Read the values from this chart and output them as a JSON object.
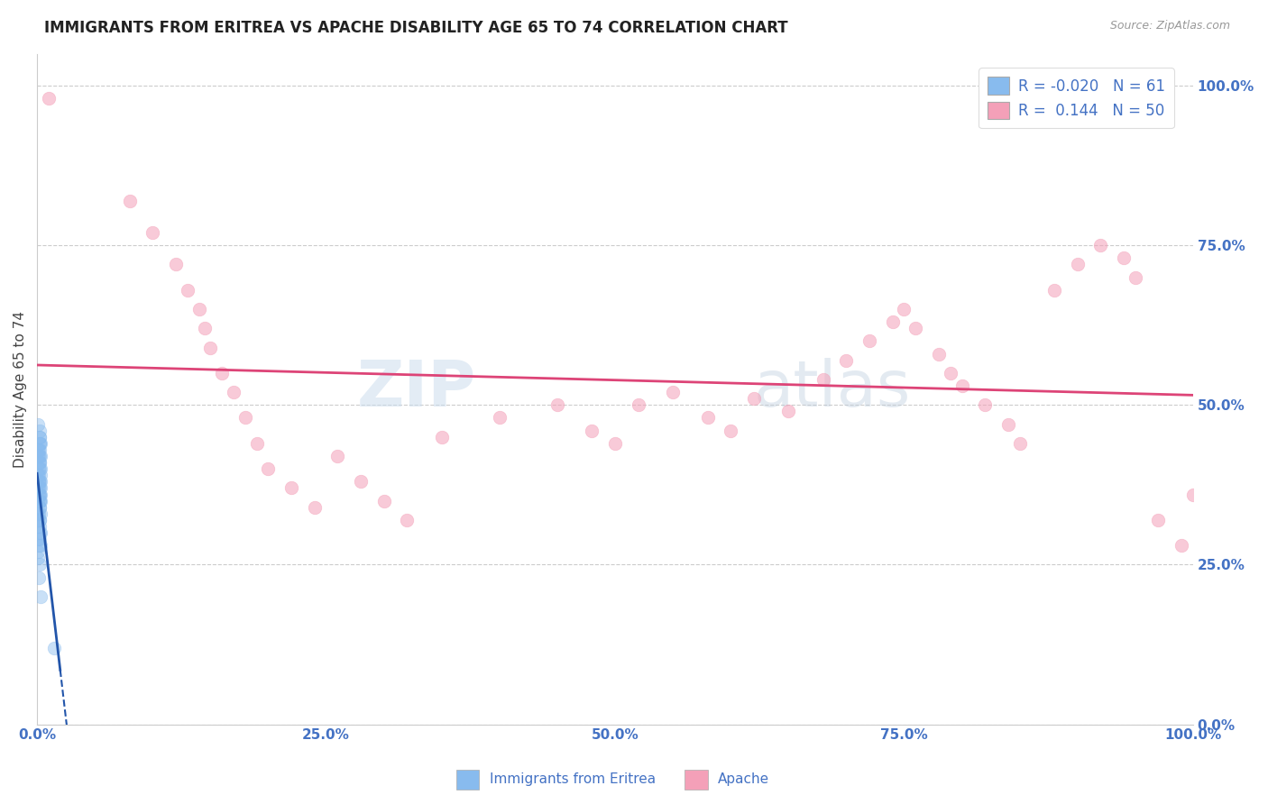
{
  "title": "IMMIGRANTS FROM ERITREA VS APACHE DISABILITY AGE 65 TO 74 CORRELATION CHART",
  "source_text": "Source: ZipAtlas.com",
  "xlabel_blue": "Immigrants from Eritrea",
  "xlabel_pink": "Apache",
  "ylabel": "Disability Age 65 to 74",
  "r_blue": -0.02,
  "n_blue": 61,
  "r_pink": 0.144,
  "n_pink": 50,
  "watermark_zip": "ZIP",
  "watermark_atlas": "atlas",
  "blue_color": "#88bbee",
  "pink_color": "#f4a0b8",
  "blue_line_color": "#2255aa",
  "pink_line_color": "#dd4477",
  "blue_scatter": [
    [
      0.1,
      42.0
    ],
    [
      0.15,
      38.0
    ],
    [
      0.2,
      44.0
    ],
    [
      0.25,
      36.0
    ],
    [
      0.3,
      40.0
    ],
    [
      0.1,
      35.0
    ],
    [
      0.2,
      41.0
    ],
    [
      0.15,
      33.0
    ],
    [
      0.25,
      45.0
    ],
    [
      0.3,
      38.0
    ],
    [
      0.1,
      37.0
    ],
    [
      0.2,
      43.0
    ],
    [
      0.15,
      39.0
    ],
    [
      0.25,
      34.0
    ],
    [
      0.3,
      42.0
    ],
    [
      0.1,
      31.0
    ],
    [
      0.2,
      36.0
    ],
    [
      0.15,
      40.0
    ],
    [
      0.25,
      37.0
    ],
    [
      0.3,
      44.0
    ],
    [
      0.1,
      33.0
    ],
    [
      0.2,
      38.0
    ],
    [
      0.15,
      42.0
    ],
    [
      0.25,
      35.0
    ],
    [
      0.3,
      39.0
    ],
    [
      0.1,
      29.0
    ],
    [
      0.2,
      34.0
    ],
    [
      0.15,
      41.0
    ],
    [
      0.25,
      32.0
    ],
    [
      0.3,
      36.0
    ],
    [
      0.1,
      43.0
    ],
    [
      0.2,
      30.0
    ],
    [
      0.15,
      37.0
    ],
    [
      0.25,
      46.0
    ],
    [
      0.3,
      33.0
    ],
    [
      0.1,
      27.0
    ],
    [
      0.2,
      32.0
    ],
    [
      0.15,
      38.0
    ],
    [
      0.25,
      31.0
    ],
    [
      0.3,
      35.0
    ],
    [
      0.1,
      39.0
    ],
    [
      0.2,
      44.0
    ],
    [
      0.15,
      28.0
    ],
    [
      0.25,
      42.0
    ],
    [
      0.3,
      30.0
    ],
    [
      0.1,
      26.0
    ],
    [
      0.2,
      35.0
    ],
    [
      0.15,
      43.0
    ],
    [
      0.25,
      29.0
    ],
    [
      0.3,
      37.0
    ],
    [
      0.1,
      47.0
    ],
    [
      0.2,
      25.0
    ],
    [
      0.15,
      36.0
    ],
    [
      0.25,
      41.0
    ],
    [
      0.3,
      28.0
    ],
    [
      1.5,
      12.0
    ],
    [
      0.1,
      32.0
    ],
    [
      0.2,
      40.0
    ],
    [
      0.15,
      23.0
    ],
    [
      0.25,
      45.0
    ],
    [
      0.3,
      20.0
    ]
  ],
  "pink_scatter": [
    [
      1.0,
      98.0
    ],
    [
      8.0,
      82.0
    ],
    [
      10.0,
      77.0
    ],
    [
      12.0,
      72.0
    ],
    [
      13.0,
      68.0
    ],
    [
      14.0,
      65.0
    ],
    [
      14.5,
      62.0
    ],
    [
      15.0,
      59.0
    ],
    [
      16.0,
      55.0
    ],
    [
      17.0,
      52.0
    ],
    [
      18.0,
      48.0
    ],
    [
      19.0,
      44.0
    ],
    [
      20.0,
      40.0
    ],
    [
      22.0,
      37.0
    ],
    [
      24.0,
      34.0
    ],
    [
      26.0,
      42.0
    ],
    [
      28.0,
      38.0
    ],
    [
      30.0,
      35.0
    ],
    [
      32.0,
      32.0
    ],
    [
      35.0,
      45.0
    ],
    [
      40.0,
      48.0
    ],
    [
      45.0,
      50.0
    ],
    [
      48.0,
      46.0
    ],
    [
      50.0,
      44.0
    ],
    [
      52.0,
      50.0
    ],
    [
      55.0,
      52.0
    ],
    [
      58.0,
      48.0
    ],
    [
      60.0,
      46.0
    ],
    [
      62.0,
      51.0
    ],
    [
      65.0,
      49.0
    ],
    [
      68.0,
      54.0
    ],
    [
      70.0,
      57.0
    ],
    [
      72.0,
      60.0
    ],
    [
      74.0,
      63.0
    ],
    [
      75.0,
      65.0
    ],
    [
      76.0,
      62.0
    ],
    [
      78.0,
      58.0
    ],
    [
      79.0,
      55.0
    ],
    [
      80.0,
      53.0
    ],
    [
      82.0,
      50.0
    ],
    [
      84.0,
      47.0
    ],
    [
      85.0,
      44.0
    ],
    [
      88.0,
      68.0
    ],
    [
      90.0,
      72.0
    ],
    [
      92.0,
      75.0
    ],
    [
      94.0,
      73.0
    ],
    [
      95.0,
      70.0
    ],
    [
      97.0,
      32.0
    ],
    [
      99.0,
      28.0
    ],
    [
      100.0,
      36.0
    ]
  ],
  "xmin": 0.0,
  "xmax": 100.0,
  "ymin": 0.0,
  "ymax": 105.0,
  "ytick_vals": [
    0.0,
    25.0,
    50.0,
    75.0,
    100.0
  ],
  "ytick_labels": [
    "0.0%",
    "25.0%",
    "50.0%",
    "75.0%",
    "100.0%"
  ],
  "xtick_vals": [
    0.0,
    25.0,
    50.0,
    75.0,
    100.0
  ],
  "xtick_labels": [
    "0.0%",
    "25.0%",
    "50.0%",
    "75.0%",
    "100.0%"
  ],
  "grid_color": "#cccccc",
  "bg_color": "#ffffff",
  "title_color": "#222222",
  "axis_label_color": "#444444",
  "tick_color": "#4472c4",
  "source_color": "#999999"
}
